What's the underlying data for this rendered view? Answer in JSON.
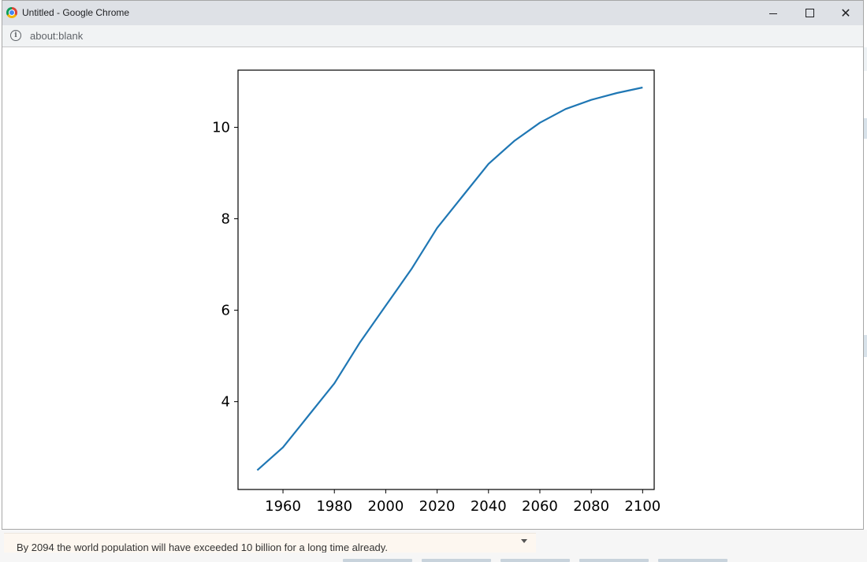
{
  "window": {
    "title": "Untitled - Google Chrome",
    "url": "about:blank",
    "controls": {
      "minimize": "minimize",
      "maximize": "maximize",
      "close": "close"
    }
  },
  "chart_data": {
    "type": "line",
    "x": [
      1950,
      1960,
      1970,
      1980,
      1990,
      2000,
      2010,
      2020,
      2030,
      2040,
      2050,
      2060,
      2070,
      2080,
      2090,
      2100
    ],
    "series": [
      {
        "values": [
          2.5,
          3.0,
          3.7,
          4.4,
          5.3,
          6.1,
          6.9,
          7.8,
          8.5,
          9.2,
          9.7,
          10.1,
          10.4,
          10.6,
          10.75,
          10.87
        ]
      }
    ],
    "color": "#1f77b4",
    "xlim": [
      1942.5,
      2104.5
    ],
    "ylim": [
      2.08,
      11.25
    ],
    "xticks": [
      1960,
      1980,
      2000,
      2020,
      2040,
      2060,
      2080,
      2100
    ],
    "yticks": [
      4,
      6,
      8,
      10
    ],
    "xtick_labels": [
      "1960",
      "1980",
      "2000",
      "2020",
      "2040",
      "2060",
      "2080",
      "2100"
    ],
    "ytick_labels": [
      "4",
      "6",
      "8",
      "10"
    ],
    "grid": false
  },
  "footer": {
    "message": "By 2094 the world population will have exceeded 10 billion for a long time already."
  }
}
